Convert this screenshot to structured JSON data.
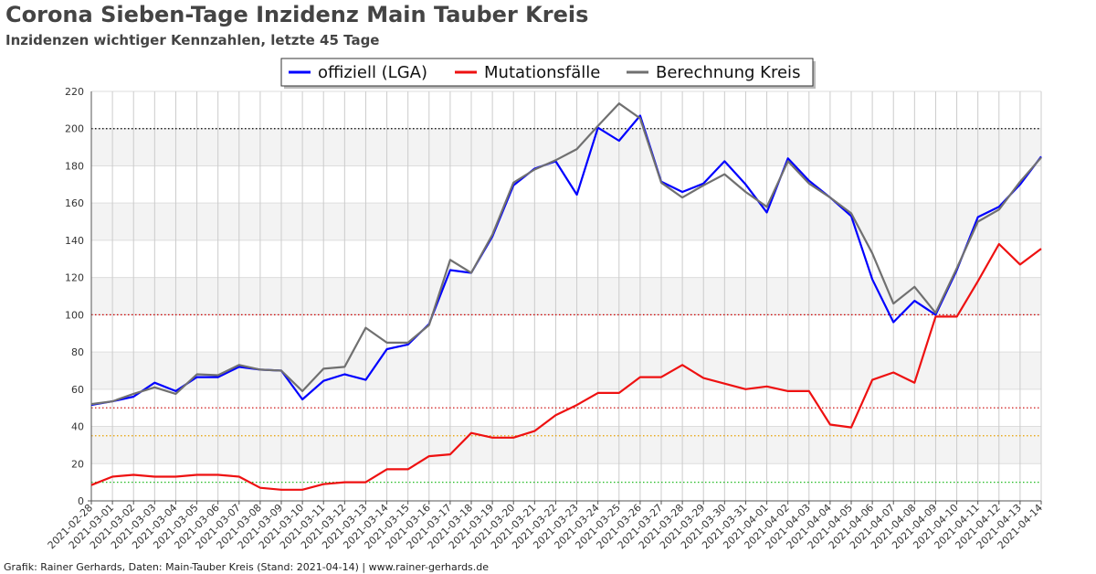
{
  "title": "Corona Sieben-Tage Inzidenz Main Tauber Kreis",
  "subtitle": "Inzidenzen wichtiger Kennzahlen, letzte 45 Tage",
  "footer": "Grafik: Rainer Gerhards, Daten: Main-Tauber Kreis (Stand: 2021-04-14) | www.rainer-gerhards.de",
  "chart_data": {
    "type": "line",
    "title": "Corona Sieben-Tage Inzidenz Main Tauber Kreis",
    "subtitle": "Inzidenzen wichtiger Kennzahlen, letzte 45 Tage",
    "xlabel": "",
    "ylabel": "",
    "ylim": [
      0,
      220
    ],
    "yticks": [
      0,
      20,
      40,
      60,
      80,
      100,
      120,
      140,
      160,
      180,
      200,
      220
    ],
    "grid": true,
    "legend_position": "top-center",
    "x": [
      "2021-02-28",
      "2021-03-01",
      "2021-03-02",
      "2021-03-03",
      "2021-03-04",
      "2021-03-05",
      "2021-03-06",
      "2021-03-07",
      "2021-03-08",
      "2021-03-09",
      "2021-03-10",
      "2021-03-11",
      "2021-03-12",
      "2021-03-13",
      "2021-03-14",
      "2021-03-15",
      "2021-03-16",
      "2021-03-17",
      "2021-03-18",
      "2021-03-19",
      "2021-03-20",
      "2021-03-21",
      "2021-03-22",
      "2021-03-23",
      "2021-03-24",
      "2021-03-25",
      "2021-03-26",
      "2021-03-27",
      "2021-03-28",
      "2021-03-29",
      "2021-03-30",
      "2021-03-31",
      "2021-04-01",
      "2021-04-02",
      "2021-04-03",
      "2021-04-04",
      "2021-04-05",
      "2021-04-06",
      "2021-04-07",
      "2021-04-08",
      "2021-04-09",
      "2021-04-10",
      "2021-04-11",
      "2021-04-12",
      "2021-04-13",
      "2021-04-14"
    ],
    "series": [
      {
        "name": "offiziell (LGA)",
        "color": "#0000ff",
        "values": [
          51.5,
          53.5,
          56,
          63.5,
          59,
          66.5,
          66.5,
          72,
          70.5,
          70,
          54.5,
          64.5,
          68,
          65,
          81.5,
          84,
          95,
          124,
          122.5,
          142,
          169.5,
          178.5,
          182.5,
          164.5,
          200.5,
          193.5,
          207,
          171.5,
          166,
          170.5,
          182.5,
          170,
          155,
          184,
          172,
          163,
          153,
          119,
          96,
          107.5,
          100,
          124,
          152.5,
          158,
          170,
          185
        ]
      },
      {
        "name": "Mutationsfälle",
        "color": "#ee1111",
        "values": [
          8.5,
          13,
          14,
          13,
          13,
          14,
          14,
          13,
          7,
          6,
          6,
          9,
          10,
          10,
          17,
          17,
          24,
          25,
          36.5,
          34,
          34,
          37.5,
          46,
          51.5,
          58,
          58,
          66.5,
          66.5,
          73,
          66,
          63,
          60,
          61.5,
          59,
          59,
          41,
          39.5,
          65,
          69,
          63.5,
          99,
          99,
          118,
          138,
          127,
          135.5
        ]
      },
      {
        "name": "Berechnung Kreis",
        "color": "#707070",
        "values": [
          52,
          53.5,
          57.5,
          61,
          57.5,
          68,
          67.5,
          73,
          70.5,
          70,
          59,
          71,
          72,
          93,
          85,
          85,
          94.5,
          129.5,
          122.5,
          143,
          171,
          178,
          183,
          189,
          201.5,
          213.5,
          205.5,
          171,
          163,
          169.5,
          175.5,
          166,
          158,
          182.5,
          170.5,
          163,
          154.5,
          133,
          106,
          115,
          101,
          125,
          150,
          156.5,
          171.5,
          184.5
        ]
      }
    ],
    "reference_lines": [
      {
        "y": 200,
        "color": "#000000"
      },
      {
        "y": 100,
        "color": "#cc0000"
      },
      {
        "y": 50,
        "color": "#cc0000"
      },
      {
        "y": 35,
        "color": "#e8a000"
      },
      {
        "y": 10,
        "color": "#22bb22"
      }
    ]
  }
}
